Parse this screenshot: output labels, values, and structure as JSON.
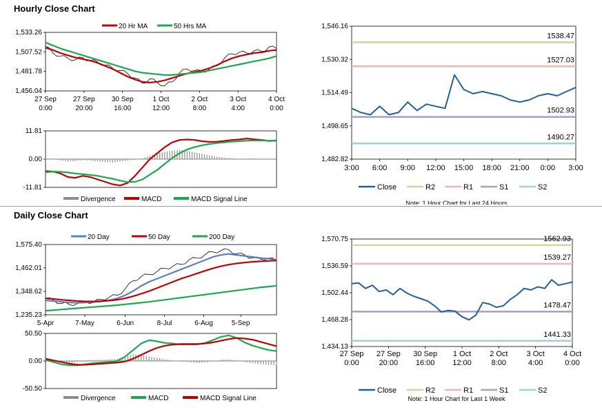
{
  "sections": {
    "hourly_title": "Hourly Close Chart",
    "daily_title": "Daily Close Chart"
  },
  "colors": {
    "price": "#000000",
    "ma_short": "#c00000",
    "ma_long": "#1aa84c",
    "ma_mid": "#5b7fc4",
    "macd_hist": "#8c8c8c",
    "close": "#1f5f9e",
    "r2": "#c7d8a0",
    "r1": "#f2b3b3",
    "s1": "#a99cc9",
    "s2": "#9fd0e0"
  },
  "chart_data": [
    {
      "id": "hourly_price",
      "type": "line",
      "ylim": [
        1456.04,
        1533.26
      ],
      "yticks": [
        "1,533.26",
        "1,507.52",
        "1,481.78",
        "1,456.04"
      ],
      "ytick_values": [
        1533.26,
        1507.52,
        1481.78,
        1456.04
      ],
      "xticks": [
        [
          "27 Sep",
          "0:00"
        ],
        [
          "27 Sep",
          "20:00"
        ],
        [
          "30 Sep",
          "16:00"
        ],
        [
          "1 Oct",
          "12:00"
        ],
        [
          "2 Oct",
          "8:00"
        ],
        [
          "3 Oct",
          "4:00"
        ],
        [
          "4 Oct",
          "0:00"
        ]
      ],
      "legend": [
        "20 Hr MA",
        "50 Hrs MA"
      ],
      "series": [
        {
          "name": "Price",
          "values": [
            1515,
            1506,
            1502,
            1499,
            1497,
            1500,
            1496,
            1494,
            1490,
            1486,
            1483,
            1479,
            1473,
            1466,
            1472,
            1467,
            1463,
            1468,
            1480,
            1485,
            1483,
            1481,
            1485,
            1489,
            1499,
            1505,
            1507,
            1506,
            1509,
            1508,
            1514,
            1512
          ]
        },
        {
          "name": "20 Hr MA",
          "values": [
            1513,
            1510,
            1506,
            1503,
            1500,
            1498,
            1496,
            1493,
            1489,
            1485,
            1480,
            1475,
            1471,
            1468,
            1467,
            1468,
            1470,
            1473,
            1476,
            1479,
            1481,
            1483,
            1486,
            1490,
            1495,
            1499,
            1502,
            1504,
            1506,
            1507,
            1509,
            1510
          ]
        },
        {
          "name": "50 Hrs MA",
          "values": [
            1520,
            1516,
            1512,
            1509,
            1506,
            1503,
            1500,
            1497,
            1494,
            1491,
            1488,
            1485,
            1482,
            1480,
            1479,
            1478,
            1477,
            1477,
            1478,
            1479,
            1480,
            1481,
            1483,
            1485,
            1487,
            1489,
            1491,
            1493,
            1495,
            1497,
            1499,
            1502
          ]
        }
      ]
    },
    {
      "id": "hourly_macd",
      "type": "line",
      "ylim": [
        -11.81,
        11.81
      ],
      "yticks": [
        "11.81",
        "0.00",
        "-11.81"
      ],
      "ytick_values": [
        11.81,
        0,
        -11.81
      ],
      "legend": [
        "Divergence",
        "MACD",
        "MACD Signal Line"
      ],
      "series": [
        {
          "name": "Divergence",
          "values": [
            0.3,
            0.2,
            -0.5,
            -1.0,
            -0.8,
            -0.4,
            -0.6,
            -1.0,
            -1.2,
            -1.4,
            -1.0,
            -0.6,
            -0.2,
            0.3,
            1.5,
            2.5,
            3.0,
            3.6,
            3.8,
            3.5,
            2.8,
            2.2,
            1.6,
            1.0,
            0.6,
            0.3,
            0.1,
            0.2,
            0.3,
            -0.1,
            -0.2,
            0.0
          ]
        },
        {
          "name": "MACD",
          "values": [
            -5.0,
            -5.2,
            -6.0,
            -7.5,
            -7.8,
            -7.0,
            -7.5,
            -8.5,
            -9.5,
            -10.5,
            -11.0,
            -10.0,
            -7.0,
            -3.5,
            0.0,
            2.5,
            5.0,
            7.0,
            8.0,
            8.2,
            8.0,
            7.5,
            7.2,
            7.3,
            7.6,
            8.0,
            8.2,
            8.6,
            8.3,
            8.0,
            7.6,
            7.8
          ]
        },
        {
          "name": "MACD Signal Line",
          "values": [
            -5.5,
            -5.2,
            -5.3,
            -5.6,
            -6.0,
            -6.3,
            -6.6,
            -7.0,
            -7.6,
            -8.2,
            -9.0,
            -9.6,
            -9.5,
            -8.5,
            -6.5,
            -4.5,
            -2.0,
            0.5,
            2.5,
            4.0,
            5.0,
            5.8,
            6.3,
            6.7,
            7.0,
            7.3,
            7.5,
            7.7,
            7.8,
            7.8,
            7.7,
            7.7
          ]
        }
      ]
    },
    {
      "id": "hourly_close",
      "type": "line",
      "ylim": [
        1482.82,
        1546.16
      ],
      "yticks": [
        "1,546.16",
        "1,530.32",
        "1,514.49",
        "1,498.65",
        "1,482.82"
      ],
      "ytick_values": [
        1546.16,
        1530.32,
        1514.49,
        1498.65,
        1482.82
      ],
      "xticks": [
        "3:00",
        "6:00",
        "9:00",
        "12:00",
        "15:00",
        "18:00",
        "21:00",
        "0:00",
        "3:00"
      ],
      "levels": [
        {
          "name": "R2",
          "value": 1538.47,
          "label": "1538.47"
        },
        {
          "name": "R1",
          "value": 1527.03,
          "label": "1527.03"
        },
        {
          "name": "S1",
          "value": 1502.93,
          "label": "1502.93"
        },
        {
          "name": "S2",
          "value": 1490.27,
          "label": "1490.27"
        }
      ],
      "legend": [
        "Close",
        "R2",
        "R1",
        "S1",
        "S2"
      ],
      "note": "Note: 1 Hour Chart for Last 24 Hours",
      "series": [
        {
          "name": "Close",
          "values": [
            1507,
            1505,
            1504,
            1508,
            1504,
            1505,
            1510,
            1506,
            1509,
            1508,
            1507,
            1523,
            1516,
            1514,
            1515,
            1514,
            1513,
            1511,
            1510,
            1511,
            1513,
            1514,
            1513,
            1515,
            1517
          ]
        }
      ]
    },
    {
      "id": "daily_price",
      "type": "line",
      "ylim": [
        1235.23,
        1575.4
      ],
      "yticks": [
        "1,575.40",
        "1,462.01",
        "1,348.62",
        "1,235.23"
      ],
      "ytick_values": [
        1575.4,
        1462.01,
        1348.62,
        1235.23
      ],
      "xticks": [
        "5-Apr",
        "7-May",
        "6-Jun",
        "8-Jul",
        "6-Aug",
        "5-Sep"
      ],
      "legend": [
        "20 Day",
        "50 Day",
        "200 Day"
      ],
      "series": [
        {
          "name": "Price",
          "values": [
            1315,
            1305,
            1290,
            1285,
            1290,
            1300,
            1295,
            1310,
            1320,
            1330,
            1360,
            1400,
            1420,
            1430,
            1445,
            1460,
            1470,
            1480,
            1500,
            1510,
            1525,
            1540,
            1545,
            1550,
            1530,
            1525,
            1510,
            1505,
            1510,
            1495
          ]
        },
        {
          "name": "20 Day",
          "values": [
            1305,
            1302,
            1298,
            1295,
            1293,
            1295,
            1297,
            1300,
            1305,
            1315,
            1330,
            1350,
            1375,
            1395,
            1410,
            1425,
            1440,
            1455,
            1470,
            1485,
            1500,
            1515,
            1525,
            1530,
            1525,
            1520,
            1515,
            1510,
            1507,
            1502
          ]
        },
        {
          "name": "50 Day",
          "values": [
            1315,
            1312,
            1308,
            1305,
            1302,
            1300,
            1300,
            1302,
            1304,
            1308,
            1315,
            1325,
            1337,
            1350,
            1365,
            1380,
            1395,
            1410,
            1422,
            1435,
            1448,
            1460,
            1470,
            1478,
            1484,
            1488,
            1492,
            1494,
            1496,
            1498
          ]
        },
        {
          "name": "200 Day",
          "values": [
            1255,
            1258,
            1261,
            1264,
            1267,
            1270,
            1273,
            1276,
            1279,
            1282,
            1286,
            1290,
            1294,
            1298,
            1303,
            1308,
            1313,
            1318,
            1323,
            1328,
            1333,
            1338,
            1343,
            1348,
            1353,
            1358,
            1363,
            1368,
            1372,
            1376
          ]
        }
      ]
    },
    {
      "id": "daily_macd",
      "type": "line",
      "ylim": [
        -50.5,
        50.5
      ],
      "yticks": [
        "50.50",
        "0.00",
        "-50.50"
      ],
      "ytick_values": [
        50.5,
        0,
        -50.5
      ],
      "legend": [
        "Divergence",
        "MACD",
        "MACD Signal Line"
      ],
      "series": [
        {
          "name": "Divergence",
          "values": [
            2,
            -1,
            -3,
            -4,
            -2,
            1,
            2,
            2,
            3,
            4,
            8,
            12,
            11,
            8,
            6,
            3,
            1,
            -1,
            -2,
            -4,
            -3,
            -1,
            2,
            3,
            1,
            -2,
            -4,
            -6,
            -7,
            -8
          ]
        },
        {
          "name": "MACD",
          "values": [
            2,
            -2,
            -6,
            -8,
            -8,
            -6,
            -4,
            -3,
            -2,
            0,
            8,
            20,
            32,
            38,
            36,
            33,
            32,
            30,
            30,
            30,
            33,
            38,
            44,
            47,
            42,
            34,
            28,
            24,
            20,
            18
          ]
        },
        {
          "name": "MACD Signal Line",
          "values": [
            4,
            1,
            -2,
            -5,
            -7,
            -7,
            -6,
            -5,
            -4,
            -3,
            -1,
            4,
            11,
            18,
            24,
            28,
            30,
            31,
            31,
            31,
            32,
            34,
            37,
            40,
            42,
            41,
            39,
            35,
            31,
            27
          ]
        }
      ]
    },
    {
      "id": "daily_close",
      "type": "line",
      "ylim": [
        1434.13,
        1570.75
      ],
      "yticks": [
        "1,570.75",
        "1,536.59",
        "1,502.44",
        "1,468.28",
        "1,434.13"
      ],
      "ytick_values": [
        1570.75,
        1536.59,
        1502.44,
        1468.28,
        1434.13
      ],
      "xticks": [
        [
          "27 Sep",
          "0:00"
        ],
        [
          "27 Sep",
          "20:00"
        ],
        [
          "30 Sep",
          "16:00"
        ],
        [
          "1 Oct",
          "12:00"
        ],
        [
          "2 Oct",
          "8:00"
        ],
        [
          "3 Oct",
          "4:00"
        ],
        [
          "4 Oct",
          "0:00"
        ]
      ],
      "levels": [
        {
          "name": "R2",
          "value": 1562.93,
          "label": "1562.93"
        },
        {
          "name": "R1",
          "value": 1539.27,
          "label": "1539.27"
        },
        {
          "name": "S1",
          "value": 1478.47,
          "label": "1478.47"
        },
        {
          "name": "S2",
          "value": 1441.33,
          "label": "1441.33"
        }
      ],
      "legend": [
        "Close",
        "R2",
        "R1",
        "S1",
        "S2"
      ],
      "note": "Note: 1 Hour Chart for Last 1 Week",
      "series": [
        {
          "name": "Close",
          "values": [
            1514,
            1515,
            1508,
            1512,
            1504,
            1506,
            1500,
            1508,
            1502,
            1498,
            1495,
            1492,
            1486,
            1478,
            1480,
            1479,
            1472,
            1468,
            1474,
            1490,
            1488,
            1484,
            1486,
            1494,
            1500,
            1508,
            1506,
            1510,
            1508,
            1519,
            1512,
            1514,
            1516
          ]
        }
      ]
    }
  ]
}
